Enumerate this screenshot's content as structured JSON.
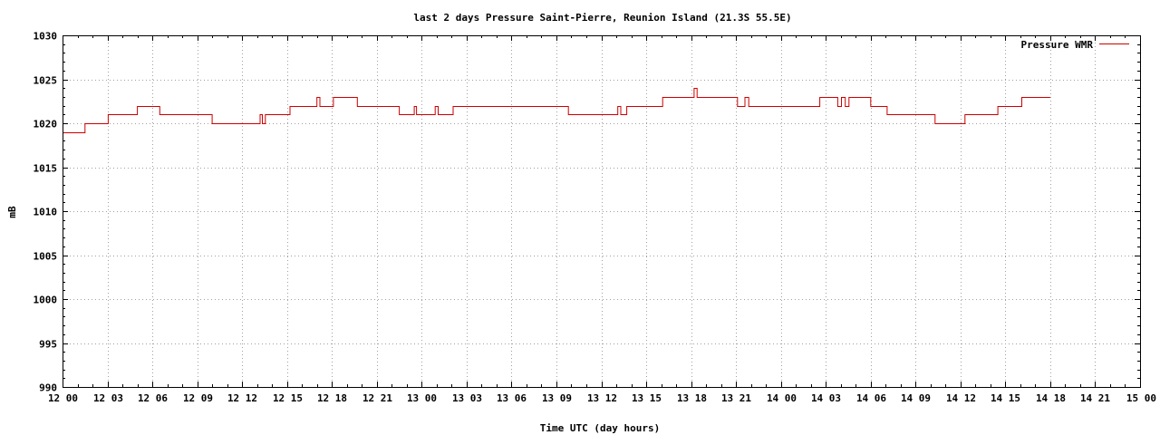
{
  "chart_data": {
    "type": "line",
    "title": "last 2 days Pressure Saint-Pierre, Reunion Island (21.3S 55.5E)",
    "xlabel": "Time UTC (day hours)",
    "ylabel": "mB",
    "ylim": [
      990,
      1030
    ],
    "yticks": [
      "990",
      "995",
      "1000",
      "1005",
      "1010",
      "1015",
      "1020",
      "1025",
      "1030"
    ],
    "xlim_hours": [
      0,
      72
    ],
    "xticks": [
      "12 00",
      "12 03",
      "12 06",
      "12 09",
      "12 12",
      "12 15",
      "12 18",
      "12 21",
      "13 00",
      "13 03",
      "13 06",
      "13 09",
      "13 12",
      "13 15",
      "13 18",
      "13 21",
      "14 00",
      "14 03",
      "14 06",
      "14 09",
      "14 12",
      "14 15",
      "14 18",
      "14 21",
      "15 00"
    ],
    "grid": true,
    "legend_position": "top-right",
    "colors": {
      "series": "#cc0000"
    },
    "series": [
      {
        "name": "Pressure WMR",
        "x_hours": [
          0.0,
          1.5,
          1.5,
          3.05,
          3.05,
          5.0,
          5.0,
          6.5,
          6.5,
          10.0,
          10.0,
          13.2,
          13.2,
          13.35,
          13.35,
          13.55,
          13.55,
          13.75,
          13.75,
          15.2,
          15.2,
          17.0,
          17.0,
          17.2,
          17.2,
          18.1,
          18.1,
          19.7,
          19.7,
          22.5,
          22.5,
          23.5,
          23.5,
          23.65,
          23.65,
          24.9,
          24.9,
          25.1,
          25.1,
          26.1,
          26.1,
          33.8,
          33.8,
          37.1,
          37.1,
          37.3,
          37.3,
          37.7,
          37.7,
          40.1,
          40.1,
          42.2,
          42.2,
          42.4,
          42.4,
          45.1,
          45.1,
          45.6,
          45.6,
          45.85,
          45.85,
          50.6,
          50.6,
          51.8,
          51.8,
          52.05,
          52.05,
          52.3,
          52.3,
          52.55,
          52.55,
          54.0,
          54.0,
          55.1,
          55.1,
          58.3,
          58.3,
          60.3,
          60.3,
          62.5,
          62.5,
          64.1,
          64.1,
          66.0
        ],
        "values": [
          1019,
          1019,
          1020,
          1020,
          1021,
          1021,
          1022,
          1022,
          1021,
          1021,
          1020,
          1020,
          1021,
          1021,
          1020,
          1020,
          1021,
          1021,
          1021,
          1021,
          1022,
          1022,
          1023,
          1023,
          1022,
          1022,
          1023,
          1023,
          1022,
          1022,
          1021,
          1021,
          1022,
          1022,
          1021,
          1021,
          1022,
          1022,
          1021,
          1021,
          1022,
          1022,
          1021,
          1021,
          1022,
          1022,
          1021,
          1021,
          1022,
          1022,
          1023,
          1023,
          1024,
          1024,
          1023,
          1023,
          1022,
          1022,
          1023,
          1023,
          1022,
          1022,
          1023,
          1023,
          1022,
          1022,
          1023,
          1023,
          1022,
          1022,
          1023,
          1023,
          1022,
          1022,
          1021,
          1021,
          1020,
          1020,
          1021,
          1021,
          1022,
          1022,
          1023,
          1023
        ]
      }
    ]
  }
}
